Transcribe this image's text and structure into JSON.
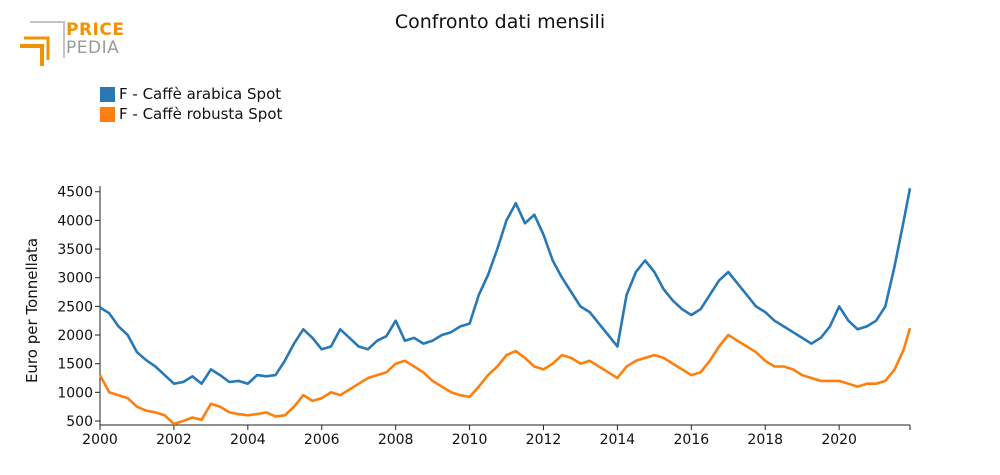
{
  "logo": {
    "line1": "PRICE",
    "line2": "PEDIA"
  },
  "chart_data": {
    "type": "line",
    "title": "Confronto dati mensili",
    "xlabel": "",
    "ylabel": "Euro per Tonnellata",
    "xlim": [
      2000,
      2021.917
    ],
    "ylim": [
      430,
      4600
    ],
    "x_ticks": [
      2000,
      2002,
      2004,
      2006,
      2008,
      2010,
      2012,
      2014,
      2016,
      2018,
      2020
    ],
    "y_ticks": [
      500,
      1000,
      1500,
      2000,
      2500,
      3000,
      3500,
      4000,
      4500
    ],
    "legend_position": "top-left",
    "grid": false,
    "series": [
      {
        "name": "F - Caffè arabica Spot",
        "color": "#2878b5",
        "points": [
          [
            2000.0,
            2480
          ],
          [
            2000.25,
            2380
          ],
          [
            2000.5,
            2150
          ],
          [
            2000.75,
            2000
          ],
          [
            2001.0,
            1700
          ],
          [
            2001.25,
            1560
          ],
          [
            2001.5,
            1450
          ],
          [
            2001.75,
            1300
          ],
          [
            2002.0,
            1150
          ],
          [
            2002.25,
            1180
          ],
          [
            2002.5,
            1280
          ],
          [
            2002.75,
            1150
          ],
          [
            2003.0,
            1400
          ],
          [
            2003.25,
            1300
          ],
          [
            2003.5,
            1180
          ],
          [
            2003.75,
            1200
          ],
          [
            2004.0,
            1150
          ],
          [
            2004.25,
            1300
          ],
          [
            2004.5,
            1280
          ],
          [
            2004.75,
            1300
          ],
          [
            2005.0,
            1550
          ],
          [
            2005.25,
            1850
          ],
          [
            2005.5,
            2100
          ],
          [
            2005.75,
            1950
          ],
          [
            2006.0,
            1750
          ],
          [
            2006.25,
            1800
          ],
          [
            2006.5,
            2100
          ],
          [
            2006.75,
            1950
          ],
          [
            2007.0,
            1800
          ],
          [
            2007.25,
            1750
          ],
          [
            2007.5,
            1900
          ],
          [
            2007.75,
            1980
          ],
          [
            2008.0,
            2250
          ],
          [
            2008.25,
            1900
          ],
          [
            2008.5,
            1950
          ],
          [
            2008.75,
            1850
          ],
          [
            2009.0,
            1900
          ],
          [
            2009.25,
            2000
          ],
          [
            2009.5,
            2050
          ],
          [
            2009.75,
            2150
          ],
          [
            2010.0,
            2200
          ],
          [
            2010.25,
            2700
          ],
          [
            2010.5,
            3050
          ],
          [
            2010.75,
            3500
          ],
          [
            2011.0,
            4000
          ],
          [
            2011.25,
            4300
          ],
          [
            2011.5,
            3950
          ],
          [
            2011.75,
            4100
          ],
          [
            2012.0,
            3750
          ],
          [
            2012.25,
            3300
          ],
          [
            2012.5,
            3000
          ],
          [
            2012.75,
            2750
          ],
          [
            2013.0,
            2500
          ],
          [
            2013.25,
            2400
          ],
          [
            2013.5,
            2200
          ],
          [
            2013.75,
            2000
          ],
          [
            2014.0,
            1800
          ],
          [
            2014.25,
            2700
          ],
          [
            2014.5,
            3100
          ],
          [
            2014.75,
            3300
          ],
          [
            2015.0,
            3100
          ],
          [
            2015.25,
            2800
          ],
          [
            2015.5,
            2600
          ],
          [
            2015.75,
            2450
          ],
          [
            2016.0,
            2350
          ],
          [
            2016.25,
            2450
          ],
          [
            2016.5,
            2700
          ],
          [
            2016.75,
            2950
          ],
          [
            2017.0,
            3100
          ],
          [
            2017.25,
            2900
          ],
          [
            2017.5,
            2700
          ],
          [
            2017.75,
            2500
          ],
          [
            2018.0,
            2400
          ],
          [
            2018.25,
            2250
          ],
          [
            2018.5,
            2150
          ],
          [
            2018.75,
            2050
          ],
          [
            2019.0,
            1950
          ],
          [
            2019.25,
            1850
          ],
          [
            2019.5,
            1950
          ],
          [
            2019.75,
            2150
          ],
          [
            2020.0,
            2500
          ],
          [
            2020.25,
            2250
          ],
          [
            2020.5,
            2100
          ],
          [
            2020.75,
            2150
          ],
          [
            2021.0,
            2250
          ],
          [
            2021.25,
            2500
          ],
          [
            2021.5,
            3200
          ],
          [
            2021.75,
            4000
          ],
          [
            2021.917,
            4560
          ]
        ]
      },
      {
        "name": "F - Caffè robusta Spot",
        "color": "#ff7f0e",
        "points": [
          [
            2000.0,
            1300
          ],
          [
            2000.25,
            1000
          ],
          [
            2000.5,
            950
          ],
          [
            2000.75,
            900
          ],
          [
            2001.0,
            750
          ],
          [
            2001.25,
            680
          ],
          [
            2001.5,
            650
          ],
          [
            2001.75,
            600
          ],
          [
            2002.0,
            450
          ],
          [
            2002.25,
            500
          ],
          [
            2002.5,
            560
          ],
          [
            2002.75,
            520
          ],
          [
            2003.0,
            800
          ],
          [
            2003.25,
            750
          ],
          [
            2003.5,
            650
          ],
          [
            2003.75,
            620
          ],
          [
            2004.0,
            600
          ],
          [
            2004.25,
            620
          ],
          [
            2004.5,
            650
          ],
          [
            2004.75,
            580
          ],
          [
            2005.0,
            600
          ],
          [
            2005.25,
            750
          ],
          [
            2005.5,
            950
          ],
          [
            2005.75,
            850
          ],
          [
            2006.0,
            900
          ],
          [
            2006.25,
            1000
          ],
          [
            2006.5,
            950
          ],
          [
            2006.75,
            1050
          ],
          [
            2007.0,
            1150
          ],
          [
            2007.25,
            1250
          ],
          [
            2007.5,
            1300
          ],
          [
            2007.75,
            1350
          ],
          [
            2008.0,
            1500
          ],
          [
            2008.25,
            1550
          ],
          [
            2008.5,
            1450
          ],
          [
            2008.75,
            1350
          ],
          [
            2009.0,
            1200
          ],
          [
            2009.25,
            1100
          ],
          [
            2009.5,
            1000
          ],
          [
            2009.75,
            950
          ],
          [
            2010.0,
            920
          ],
          [
            2010.25,
            1100
          ],
          [
            2010.5,
            1300
          ],
          [
            2010.75,
            1450
          ],
          [
            2011.0,
            1650
          ],
          [
            2011.25,
            1720
          ],
          [
            2011.5,
            1600
          ],
          [
            2011.75,
            1450
          ],
          [
            2012.0,
            1400
          ],
          [
            2012.25,
            1500
          ],
          [
            2012.5,
            1650
          ],
          [
            2012.75,
            1600
          ],
          [
            2013.0,
            1500
          ],
          [
            2013.25,
            1550
          ],
          [
            2013.5,
            1450
          ],
          [
            2013.75,
            1350
          ],
          [
            2014.0,
            1250
          ],
          [
            2014.25,
            1450
          ],
          [
            2014.5,
            1550
          ],
          [
            2014.75,
            1600
          ],
          [
            2015.0,
            1650
          ],
          [
            2015.25,
            1600
          ],
          [
            2015.5,
            1500
          ],
          [
            2015.75,
            1400
          ],
          [
            2016.0,
            1300
          ],
          [
            2016.25,
            1350
          ],
          [
            2016.5,
            1550
          ],
          [
            2016.75,
            1800
          ],
          [
            2017.0,
            2000
          ],
          [
            2017.25,
            1900
          ],
          [
            2017.5,
            1800
          ],
          [
            2017.75,
            1700
          ],
          [
            2018.0,
            1550
          ],
          [
            2018.25,
            1450
          ],
          [
            2018.5,
            1450
          ],
          [
            2018.75,
            1400
          ],
          [
            2019.0,
            1300
          ],
          [
            2019.25,
            1250
          ],
          [
            2019.5,
            1200
          ],
          [
            2019.75,
            1200
          ],
          [
            2020.0,
            1200
          ],
          [
            2020.25,
            1150
          ],
          [
            2020.5,
            1100
          ],
          [
            2020.75,
            1150
          ],
          [
            2021.0,
            1150
          ],
          [
            2021.25,
            1200
          ],
          [
            2021.5,
            1400
          ],
          [
            2021.75,
            1750
          ],
          [
            2021.917,
            2120
          ]
        ]
      }
    ]
  }
}
